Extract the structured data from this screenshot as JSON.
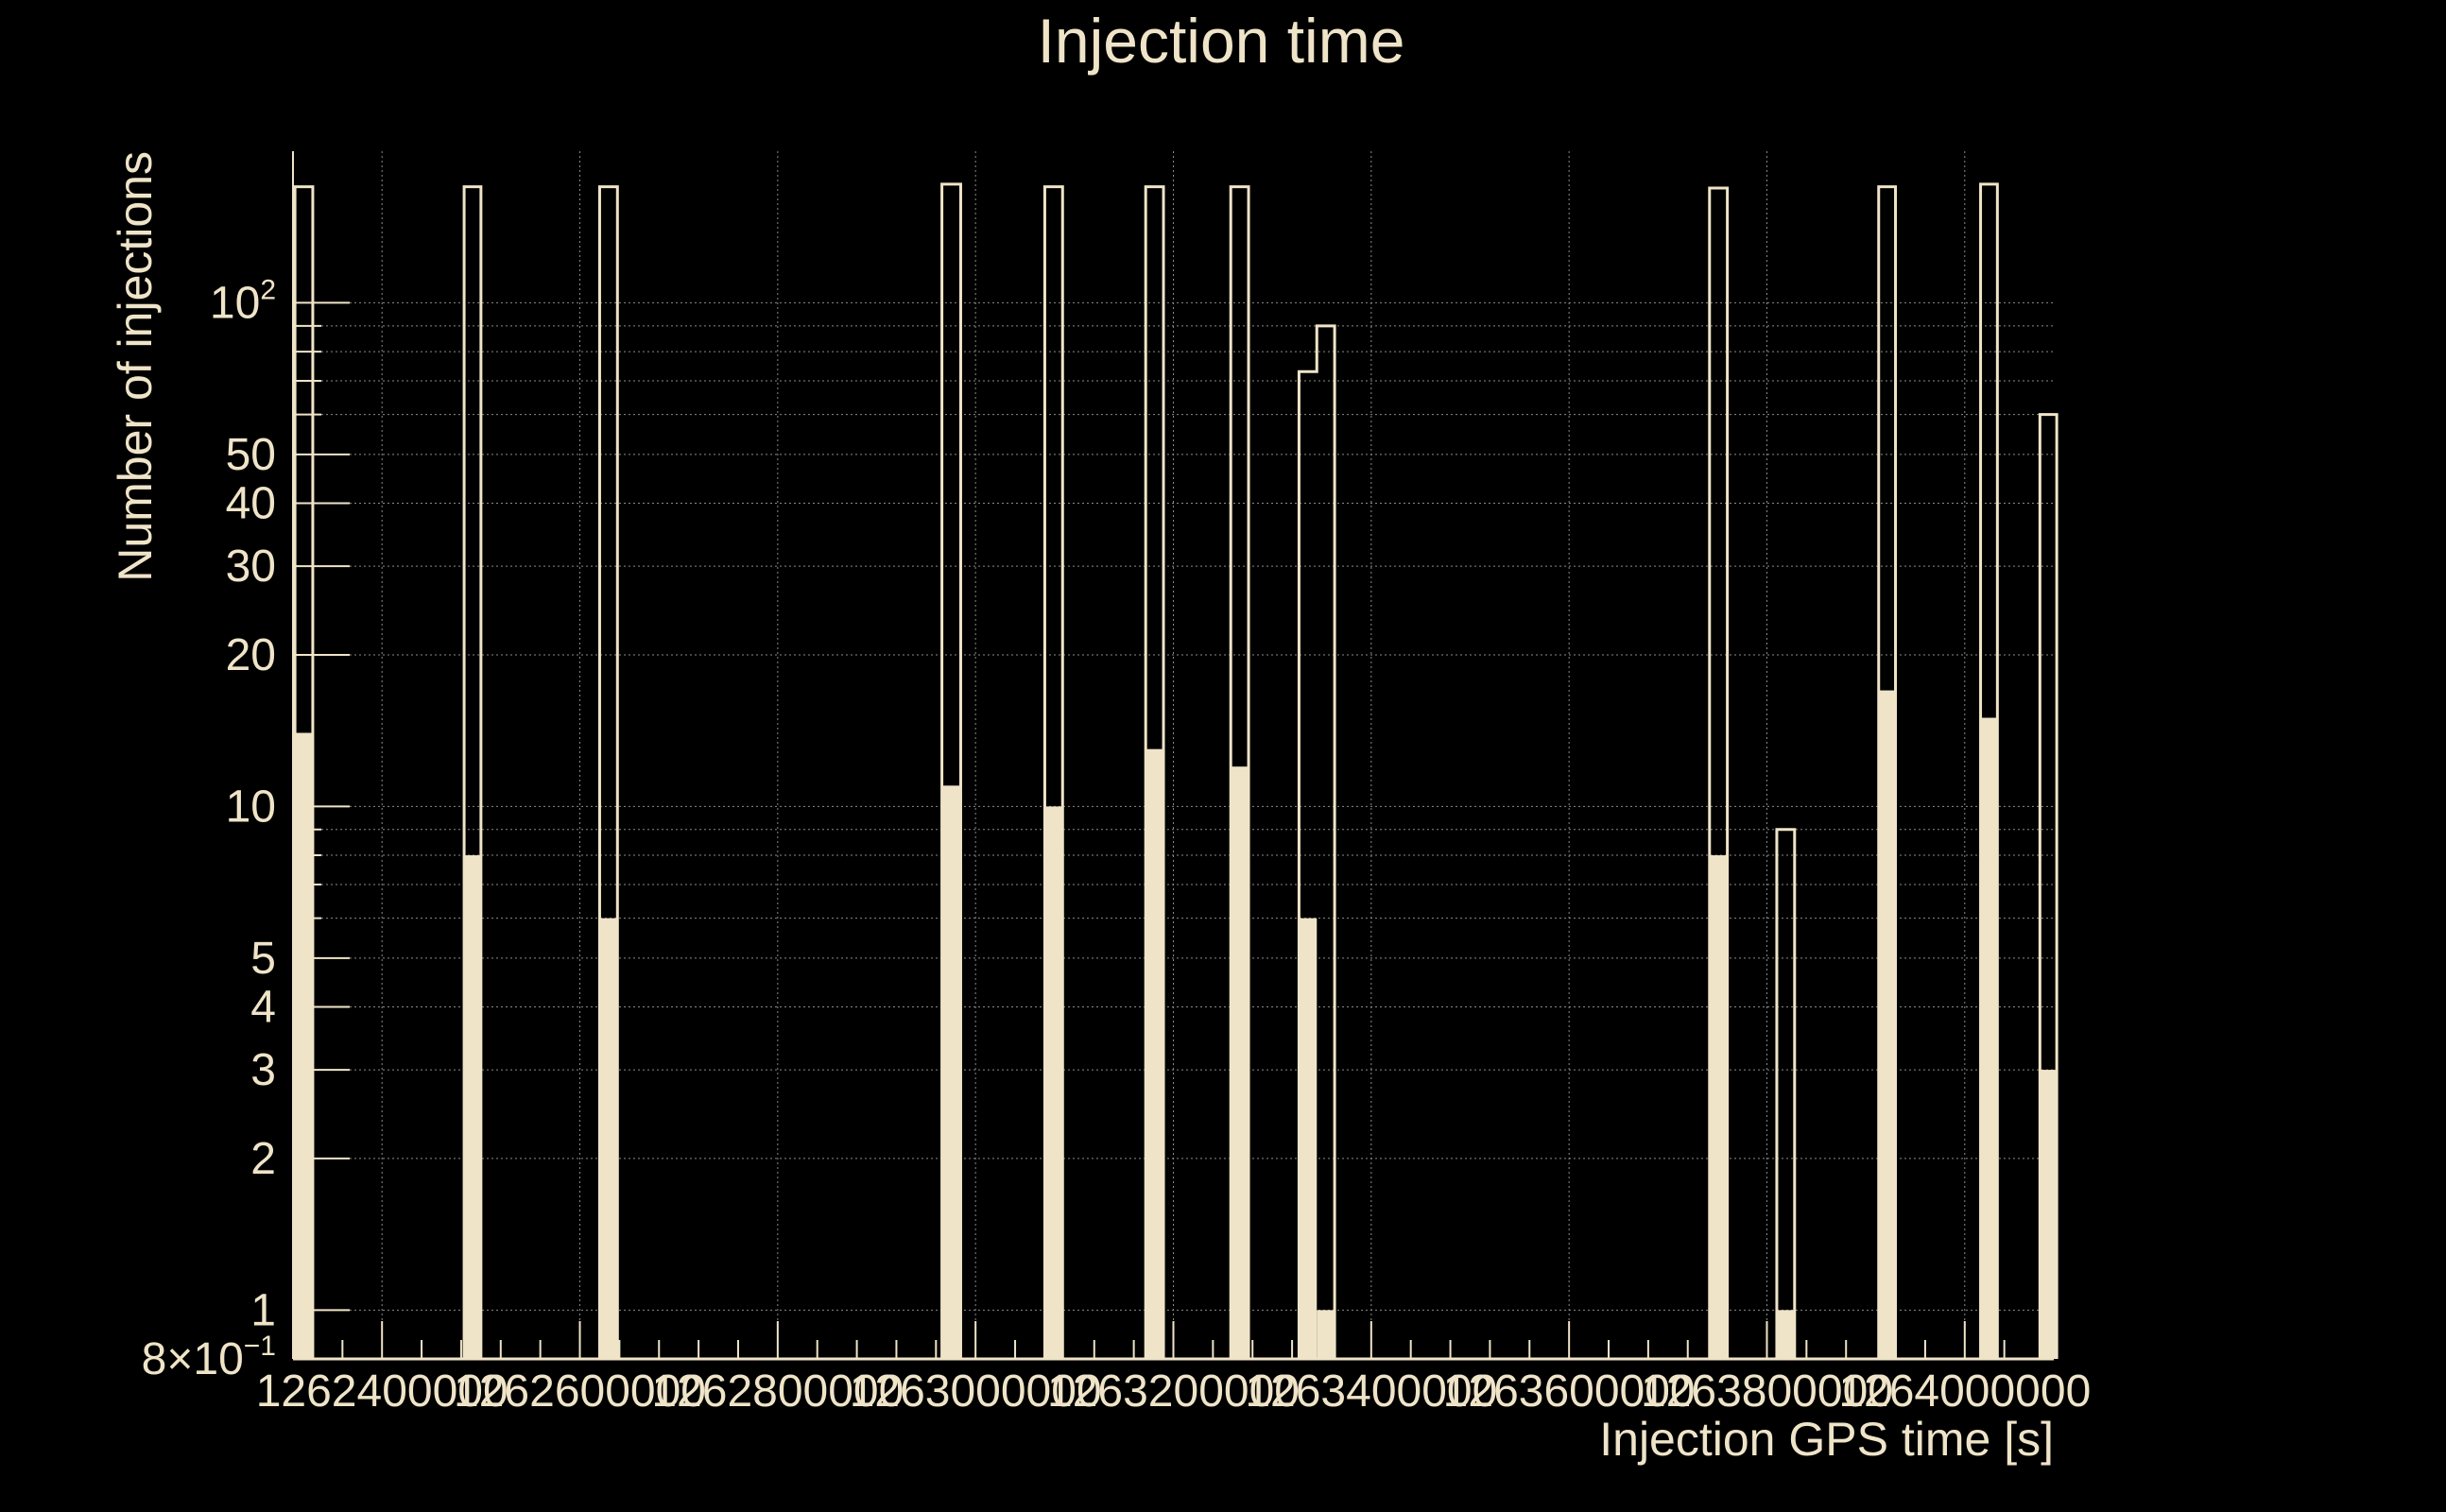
{
  "colors": {
    "background": "#000000",
    "foreground": "#efe4c8",
    "grid": "#8a8a8a"
  },
  "chart_data": {
    "type": "bar",
    "title": "Injection time",
    "xlabel": "Injection GPS time [s]",
    "ylabel": "Number of injections",
    "ylog": true,
    "grid": true,
    "xlim": [
      1262310000,
      1264090000
    ],
    "ylim": [
      0.8,
      200
    ],
    "x_ticks": [
      {
        "value": 1262400000,
        "label": "1262400000"
      },
      {
        "value": 1262600000,
        "label": "1262600000"
      },
      {
        "value": 1262800000,
        "label": "1262800000"
      },
      {
        "value": 1263000000,
        "label": "1263000000"
      },
      {
        "value": 1263200000,
        "label": "1263200000"
      },
      {
        "value": 1263400000,
        "label": "1263400000"
      },
      {
        "value": 1263600000,
        "label": "1263600000"
      },
      {
        "value": 1263800000,
        "label": "1263800000"
      },
      {
        "value": 1264000000,
        "label": "1264000000"
      }
    ],
    "y_ticks": [
      {
        "value": 0.8,
        "base": "8×10",
        "exp": "−1"
      },
      {
        "value": 1,
        "base": "1",
        "exp": ""
      },
      {
        "value": 2,
        "base": "2",
        "exp": ""
      },
      {
        "value": 3,
        "base": "3",
        "exp": ""
      },
      {
        "value": 4,
        "base": "4",
        "exp": ""
      },
      {
        "value": 5,
        "base": "5",
        "exp": ""
      },
      {
        "value": 10,
        "base": "10",
        "exp": ""
      },
      {
        "value": 20,
        "base": "20",
        "exp": ""
      },
      {
        "value": 30,
        "base": "30",
        "exp": ""
      },
      {
        "value": 40,
        "base": "40",
        "exp": ""
      },
      {
        "value": 50,
        "base": "50",
        "exp": ""
      },
      {
        "value": 100,
        "base": "10",
        "exp": "2"
      }
    ],
    "y_minor_grid": [
      6,
      7,
      8,
      9,
      60,
      70,
      80,
      90
    ],
    "series": [
      {
        "style": "outline",
        "bins": [
          {
            "x0": 1262312000,
            "x1": 1262330000,
            "y": 170
          },
          {
            "x0": 1262483000,
            "x1": 1262500000,
            "y": 170
          },
          {
            "x0": 1262620000,
            "x1": 1262638000,
            "y": 170
          },
          {
            "x0": 1262966000,
            "x1": 1262985000,
            "y": 172
          },
          {
            "x0": 1263070000,
            "x1": 1263088000,
            "y": 170
          },
          {
            "x0": 1263172000,
            "x1": 1263190000,
            "y": 170
          },
          {
            "x0": 1263258000,
            "x1": 1263276000,
            "y": 170
          },
          {
            "x0": 1263327000,
            "x1": 1263345000,
            "y": 73
          },
          {
            "x0": 1263345000,
            "x1": 1263363000,
            "y": 90
          },
          {
            "x0": 1263742000,
            "x1": 1263760000,
            "y": 169
          },
          {
            "x0": 1263810000,
            "x1": 1263828000,
            "y": 9
          },
          {
            "x0": 1263913000,
            "x1": 1263930000,
            "y": 170
          },
          {
            "x0": 1264016000,
            "x1": 1264033000,
            "y": 172
          },
          {
            "x0": 1264076000,
            "x1": 1264093000,
            "y": 60
          }
        ]
      },
      {
        "style": "filled",
        "bins": [
          {
            "x0": 1262312000,
            "x1": 1262330000,
            "y": 14
          },
          {
            "x0": 1262483000,
            "x1": 1262500000,
            "y": 8
          },
          {
            "x0": 1262620000,
            "x1": 1262638000,
            "y": 6
          },
          {
            "x0": 1262966000,
            "x1": 1262985000,
            "y": 11
          },
          {
            "x0": 1263070000,
            "x1": 1263088000,
            "y": 10
          },
          {
            "x0": 1263172000,
            "x1": 1263190000,
            "y": 13
          },
          {
            "x0": 1263258000,
            "x1": 1263276000,
            "y": 12
          },
          {
            "x0": 1263327000,
            "x1": 1263345000,
            "y": 6
          },
          {
            "x0": 1263345000,
            "x1": 1263363000,
            "y": 1
          },
          {
            "x0": 1263742000,
            "x1": 1263760000,
            "y": 8
          },
          {
            "x0": 1263810000,
            "x1": 1263828000,
            "y": 1
          },
          {
            "x0": 1263913000,
            "x1": 1263930000,
            "y": 17
          },
          {
            "x0": 1264016000,
            "x1": 1264033000,
            "y": 15
          },
          {
            "x0": 1264076000,
            "x1": 1264093000,
            "y": 3
          }
        ]
      }
    ]
  }
}
